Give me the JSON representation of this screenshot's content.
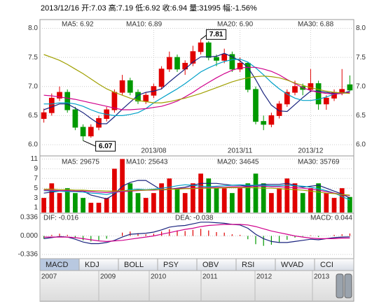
{
  "chart_data": {
    "type": "stock",
    "header": "2013/12/16 开:7.03 高:7.19 低:6.92 收:6.94 量:31995 幅:-1.56%",
    "categories": [
      null,
      null,
      null,
      null,
      null,
      null,
      null,
      null,
      null,
      null,
      null,
      null,
      null,
      null,
      "2013/08",
      null,
      null,
      null,
      null,
      null,
      null,
      null,
      null,
      null,
      null,
      "2013/11",
      null,
      null,
      null,
      null,
      null,
      null,
      null,
      null,
      "2013/12",
      null,
      null,
      null,
      null,
      null
    ],
    "ohlc": [
      [
        6.45,
        6.62,
        6.38,
        6.55
      ],
      [
        6.55,
        6.88,
        6.5,
        6.8
      ],
      [
        6.8,
        7.0,
        6.75,
        6.9
      ],
      [
        6.9,
        6.95,
        6.55,
        6.6
      ],
      [
        6.6,
        6.65,
        6.25,
        6.3
      ],
      [
        6.3,
        6.35,
        6.07,
        6.15
      ],
      [
        6.15,
        6.35,
        6.12,
        6.3
      ],
      [
        6.3,
        6.5,
        6.25,
        6.45
      ],
      [
        6.45,
        6.65,
        6.4,
        6.6
      ],
      [
        6.6,
        6.95,
        6.55,
        6.9
      ],
      [
        6.9,
        7.2,
        6.85,
        7.1
      ],
      [
        7.1,
        7.15,
        6.85,
        6.9
      ],
      [
        6.9,
        6.95,
        6.7,
        6.75
      ],
      [
        6.75,
        6.9,
        6.7,
        6.85
      ],
      [
        6.85,
        7.05,
        6.8,
        7.0
      ],
      [
        7.0,
        7.35,
        6.95,
        7.3
      ],
      [
        7.3,
        7.6,
        7.25,
        7.5
      ],
      [
        7.5,
        7.55,
        7.25,
        7.3
      ],
      [
        7.3,
        7.45,
        7.2,
        7.4
      ],
      [
        7.4,
        7.7,
        7.35,
        7.6
      ],
      [
        7.6,
        7.81,
        7.55,
        7.75
      ],
      [
        7.75,
        7.78,
        7.45,
        7.5
      ],
      [
        7.5,
        7.55,
        7.35,
        7.45
      ],
      [
        7.45,
        7.65,
        7.4,
        7.55
      ],
      [
        7.55,
        7.6,
        7.25,
        7.3
      ],
      [
        7.3,
        7.5,
        7.25,
        7.4
      ],
      [
        7.4,
        7.42,
        6.9,
        6.95
      ],
      [
        6.95,
        7.0,
        6.35,
        6.4
      ],
      [
        6.4,
        6.5,
        6.25,
        6.35
      ],
      [
        6.35,
        6.55,
        6.3,
        6.5
      ],
      [
        6.5,
        6.75,
        6.45,
        6.7
      ],
      [
        6.7,
        6.95,
        6.65,
        6.9
      ],
      [
        6.9,
        7.1,
        6.85,
        7.0
      ],
      [
        7.0,
        7.05,
        6.85,
        6.95
      ],
      [
        6.95,
        7.3,
        6.9,
        7.05
      ],
      [
        7.05,
        7.1,
        6.6,
        6.7
      ],
      [
        6.7,
        6.85,
        6.6,
        6.8
      ],
      [
        6.8,
        6.95,
        6.75,
        6.9
      ],
      [
        6.9,
        7.3,
        6.85,
        6.95
      ],
      [
        7.03,
        7.19,
        6.92,
        6.94
      ]
    ],
    "up_color": "#e00000",
    "down_color": "#009900",
    "max_label": "7.81",
    "min_label": "6.07",
    "ylim": [
      5.94,
      8.15
    ],
    "yticks": [
      {
        "value": 8,
        "label": "8.0"
      },
      7.5,
      {
        "value": 7,
        "label": "7.0"
      },
      6.5,
      {
        "value": 6,
        "label": "6.0"
      }
    ],
    "series": [
      {
        "name": "MA5: 6.92",
        "color": "#1a237e",
        "values": [
          6.6,
          6.65,
          6.7,
          6.7,
          6.63,
          6.55,
          6.45,
          6.36,
          6.36,
          6.48,
          6.61,
          6.73,
          6.85,
          6.9,
          6.92,
          6.96,
          7.08,
          7.19,
          7.3,
          7.42,
          7.51,
          7.51,
          7.52,
          7.57,
          7.51,
          7.44,
          7.33,
          7.12,
          6.88,
          6.68,
          6.58,
          6.57,
          6.69,
          6.81,
          6.92,
          6.92,
          6.9,
          6.88,
          6.88,
          6.92
        ]
      },
      {
        "name": "MA10: 6.89",
        "color": "#00a0c8",
        "values": [
          6.7,
          6.7,
          6.72,
          6.72,
          6.7,
          6.66,
          6.6,
          6.55,
          6.52,
          6.5,
          6.5,
          6.52,
          6.55,
          6.62,
          6.72,
          6.8,
          6.88,
          6.96,
          7.05,
          7.15,
          7.25,
          7.32,
          7.38,
          7.43,
          7.46,
          7.47,
          7.42,
          7.32,
          7.2,
          7.07,
          6.96,
          6.87,
          6.8,
          6.76,
          6.76,
          6.78,
          6.82,
          6.87,
          6.89,
          6.89
        ]
      },
      {
        "name": "MA20: 6.90",
        "color": "#d0008c",
        "values": [
          6.85,
          6.84,
          6.82,
          6.8,
          6.78,
          6.75,
          6.72,
          6.69,
          6.66,
          6.63,
          6.6,
          6.6,
          6.61,
          6.62,
          6.64,
          6.66,
          6.7,
          6.75,
          6.82,
          6.9,
          6.99,
          7.07,
          7.15,
          7.22,
          7.28,
          7.32,
          7.33,
          7.33,
          7.3,
          7.26,
          7.2,
          7.12,
          7.05,
          6.98,
          6.93,
          6.9,
          6.88,
          6.87,
          6.88,
          6.9
        ]
      },
      {
        "name": "MA30: 6.88",
        "color": "#a0a000",
        "values": [
          7.55,
          7.5,
          7.45,
          7.38,
          7.3,
          7.22,
          7.13,
          7.04,
          6.96,
          6.9,
          6.85,
          6.8,
          6.76,
          6.74,
          6.72,
          6.72,
          6.74,
          6.77,
          6.8,
          6.84,
          6.88,
          6.93,
          6.98,
          7.03,
          7.08,
          7.12,
          7.15,
          7.17,
          7.18,
          7.17,
          7.15,
          7.11,
          7.06,
          7.02,
          6.98,
          6.95,
          6.92,
          6.9,
          6.89,
          6.88
        ]
      }
    ],
    "volume": [
      3,
      6,
      4,
      5,
      4,
      3,
      2,
      2,
      3,
      9,
      11,
      6,
      4,
      3,
      4,
      6,
      7,
      5,
      4,
      6,
      8,
      7,
      5,
      5,
      4,
      5,
      6,
      8,
      6,
      4,
      5,
      7,
      6,
      4,
      5,
      6,
      4,
      3,
      5,
      3.2
    ],
    "volume_ylim": [
      0,
      11.5
    ],
    "volume_yticks": [
      1,
      3,
      5,
      7,
      9,
      11
    ],
    "volume_series": [
      {
        "name": "MA5: 29675",
        "color": "#1a237e",
        "values": [
          4,
          4.2,
          4.4,
          4.5,
          4.4,
          4.4,
          3.6,
          3.2,
          2.8,
          3.8,
          5.4,
          6.2,
          6.6,
          6.6,
          5.6,
          4.6,
          4.8,
          5,
          5.2,
          5.6,
          6,
          6,
          6,
          5.8,
          5.6,
          5.6,
          5.4,
          5.6,
          5.8,
          5.8,
          5.8,
          6,
          5.6,
          5.2,
          5.4,
          5.6,
          5,
          4.4,
          3.8,
          2.97
        ]
      },
      {
        "name": "MA10: 25643",
        "color": "#00a0c8",
        "values": [
          4.5,
          4.4,
          4.4,
          4.3,
          4.3,
          4.2,
          4,
          3.9,
          3.7,
          4.1,
          4.4,
          4.7,
          4.8,
          4.7,
          4.8,
          5,
          5.2,
          5.5,
          5.7,
          5.6,
          5.4,
          5.3,
          5.4,
          5.5,
          5.6,
          5.7,
          5.6,
          5.6,
          5.6,
          5.5,
          5.5,
          5.6,
          5.5,
          5.4,
          5.2,
          4.9,
          4.5,
          4,
          3.3,
          2.56
        ]
      },
      {
        "name": "MA20: 34645",
        "color": "#d0008c",
        "values": [
          4.6,
          4.6,
          4.5,
          4.5,
          4.4,
          4.4,
          4.3,
          4.2,
          4.1,
          4.2,
          4.3,
          4.4,
          4.5,
          4.6,
          4.6,
          4.7,
          4.8,
          4.9,
          5,
          5,
          5.1,
          5.1,
          5.2,
          5.2,
          5.3,
          5.3,
          5.3,
          5.4,
          5.4,
          5.3,
          5.3,
          5.2,
          5.1,
          5,
          4.8,
          4.6,
          4.3,
          4,
          3.7,
          3.46
        ]
      },
      {
        "name": "MA30: 35769",
        "color": "#a0a000",
        "values": [
          4.8,
          4.8,
          4.7,
          4.7,
          4.6,
          4.6,
          4.5,
          4.5,
          4.4,
          4.4,
          4.5,
          4.5,
          4.6,
          4.6,
          4.7,
          4.7,
          4.8,
          4.8,
          4.9,
          4.9,
          5,
          5,
          5,
          5.1,
          5.1,
          5.1,
          5.1,
          5.1,
          5,
          5,
          4.9,
          4.8,
          4.7,
          4.6,
          4.4,
          4.2,
          4,
          3.9,
          3.7,
          3.58
        ]
      }
    ],
    "macd": [
      -0.05,
      0.02,
      0.04,
      0.02,
      -0.04,
      -0.08,
      -0.1,
      -0.08,
      -0.05,
      0,
      0.06,
      0.08,
      0.05,
      0.03,
      0.04,
      0.08,
      0.12,
      0.1,
      0.09,
      0.11,
      0.13,
      0.1,
      0.07,
      0.06,
      0.03,
      0.02,
      -0.06,
      -0.15,
      -0.18,
      -0.16,
      -0.12,
      -0.07,
      -0.03,
      -0.01,
      0.01,
      -0.02,
      0,
      0.02,
      0.03,
      0.044
    ],
    "macd_ylim": [
      -0.4,
      0.4
    ],
    "macd_yticks": [
      0.336,
      {
        "value": 0,
        "label": "0.000"
      },
      -0.336
    ],
    "macd_series": [
      {
        "name": "DIF: -0.016",
        "color": "#1a237e",
        "values": [
          -0.05,
          -0.03,
          -0.01,
          -0.02,
          -0.06,
          -0.11,
          -0.14,
          -0.14,
          -0.12,
          -0.08,
          -0.02,
          0.03,
          0.04,
          0.05,
          0.07,
          0.11,
          0.16,
          0.18,
          0.19,
          0.22,
          0.25,
          0.25,
          0.24,
          0.23,
          0.21,
          0.2,
          0.14,
          0.03,
          -0.05,
          -0.1,
          -0.12,
          -0.12,
          -0.1,
          -0.08,
          -0.06,
          -0.07,
          -0.05,
          -0.03,
          -0.02,
          -0.016
        ]
      },
      {
        "name": "DEA: -0.038",
        "color": "#d0008c",
        "values": [
          -0.02,
          -0.02,
          -0.02,
          -0.02,
          -0.03,
          -0.05,
          -0.07,
          -0.09,
          -0.1,
          -0.09,
          -0.08,
          -0.06,
          -0.04,
          -0.02,
          0,
          0.03,
          0.06,
          0.09,
          0.12,
          0.14,
          0.17,
          0.19,
          0.2,
          0.21,
          0.21,
          0.21,
          0.2,
          0.17,
          0.13,
          0.09,
          0.06,
          0.03,
          0,
          -0.02,
          -0.04,
          -0.05,
          -0.05,
          -0.05,
          -0.04,
          -0.038
        ]
      }
    ],
    "macd_label": "MACD: 0.044",
    "tabs": [
      "MACD",
      "KDJ",
      "BOLL",
      "PSY",
      "OBV",
      "RSI",
      "WVAD",
      "CCI"
    ],
    "timeline": [
      "2007",
      "2009",
      "2010",
      "2011",
      "2012",
      "2013"
    ]
  }
}
